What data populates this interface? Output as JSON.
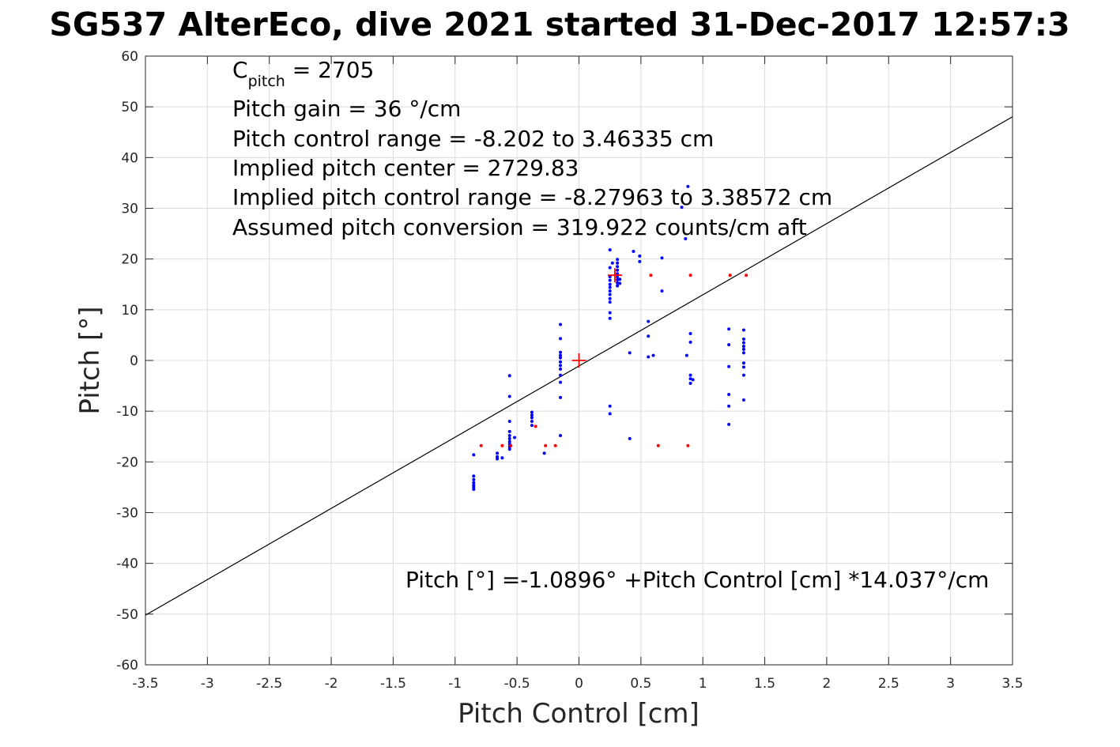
{
  "chart_data": {
    "type": "scatter",
    "title": "SG537 AlterEco, dive 2021 started 31-Dec-2017 12:57:3",
    "xlabel": "Pitch Control [cm]",
    "ylabel": "Pitch [°]",
    "xlim": [
      -3.5,
      3.5
    ],
    "ylim": [
      -60,
      60
    ],
    "xticks": [
      "-3.5",
      "-3",
      "-2.5",
      "-2",
      "-1.5",
      "-1",
      "-0.5",
      "0",
      "0.5",
      "1",
      "1.5",
      "2",
      "2.5",
      "3",
      "3.5"
    ],
    "yticks": [
      "60",
      "50",
      "40",
      "30",
      "20",
      "10",
      "0",
      "-10",
      "-20",
      "-30",
      "-40",
      "-50",
      "-60"
    ],
    "grid": true,
    "annotations": {
      "c_pitch_base": "C",
      "c_pitch_sub": "pitch",
      "c_pitch_value": " = 2705",
      "pitch_gain": "Pitch gain = 36 °/cm",
      "pitch_control_range": "Pitch control range = -8.202 to 3.46335 cm",
      "implied_center": "Implied pitch center = 2729.83",
      "implied_range": "Implied pitch control range = -8.27963 to 3.38572 cm",
      "assumed_conversion": "Assumed pitch conversion = 319.922 counts/cm aft",
      "fit_equation": "Pitch [°] =-1.0896° +Pitch Control [cm] *14.037°/cm"
    },
    "fit_line": {
      "intercept": -1.0896,
      "slope": 14.037,
      "color": "#000000"
    },
    "series": [
      {
        "color": "#0000ff",
        "points": [
          [
            -0.85,
            -18.6
          ],
          [
            -0.85,
            -22.8
          ],
          [
            -0.85,
            -23.5
          ],
          [
            -0.85,
            -24.1
          ],
          [
            -0.85,
            -24.6
          ],
          [
            -0.85,
            -25.0
          ],
          [
            -0.85,
            -25.4
          ],
          [
            -0.66,
            -18.3
          ],
          [
            -0.66,
            -19.0
          ],
          [
            -0.66,
            -19.4
          ],
          [
            -0.62,
            -19.2
          ],
          [
            -0.56,
            -3.0
          ],
          [
            -0.56,
            -7.1
          ],
          [
            -0.56,
            -12.0
          ],
          [
            -0.56,
            -14.0
          ],
          [
            -0.56,
            -14.8
          ],
          [
            -0.56,
            -15.4
          ],
          [
            -0.56,
            -16.0
          ],
          [
            -0.56,
            -16.5
          ],
          [
            -0.56,
            -17.0
          ],
          [
            -0.56,
            -17.5
          ],
          [
            -0.52,
            -15.2
          ],
          [
            -0.38,
            -10.2
          ],
          [
            -0.38,
            -10.8
          ],
          [
            -0.38,
            -11.3
          ],
          [
            -0.38,
            -12.0
          ],
          [
            -0.38,
            -12.8
          ],
          [
            -0.28,
            -18.3
          ],
          [
            -0.15,
            7.1
          ],
          [
            -0.15,
            4.3
          ],
          [
            -0.15,
            1.6
          ],
          [
            -0.15,
            1.0
          ],
          [
            -0.15,
            0.5
          ],
          [
            -0.15,
            -0.3
          ],
          [
            -0.15,
            -1.0
          ],
          [
            -0.15,
            -1.7
          ],
          [
            -0.15,
            -2.9
          ],
          [
            -0.15,
            -4.3
          ],
          [
            -0.15,
            -7.3
          ],
          [
            -0.15,
            -14.8
          ],
          [
            0.25,
            21.8
          ],
          [
            0.25,
            18.3
          ],
          [
            0.25,
            16.5
          ],
          [
            0.25,
            15.8
          ],
          [
            0.25,
            15.0
          ],
          [
            0.25,
            14.4
          ],
          [
            0.25,
            13.7
          ],
          [
            0.25,
            13.0
          ],
          [
            0.25,
            12.2
          ],
          [
            0.25,
            11.5
          ],
          [
            0.25,
            9.4
          ],
          [
            0.25,
            8.3
          ],
          [
            0.25,
            -9.0
          ],
          [
            0.25,
            -10.5
          ],
          [
            0.27,
            19.2
          ],
          [
            0.31,
            19.9
          ],
          [
            0.31,
            19.2
          ],
          [
            0.31,
            18.5
          ],
          [
            0.31,
            17.8
          ],
          [
            0.31,
            17.1
          ],
          [
            0.31,
            16.4
          ],
          [
            0.31,
            15.9
          ],
          [
            0.31,
            15.3
          ],
          [
            0.31,
            14.7
          ],
          [
            0.33,
            15.2
          ],
          [
            0.33,
            16.0
          ],
          [
            0.41,
            1.5
          ],
          [
            0.41,
            -15.4
          ],
          [
            0.44,
            21.5
          ],
          [
            0.49,
            20.6
          ],
          [
            0.49,
            19.5
          ],
          [
            0.56,
            7.7
          ],
          [
            0.56,
            4.8
          ],
          [
            0.56,
            0.7
          ],
          [
            0.6,
            1.0
          ],
          [
            0.67,
            20.2
          ],
          [
            0.67,
            13.7
          ],
          [
            0.83,
            30.2
          ],
          [
            0.86,
            24.0
          ],
          [
            0.88,
            34.3
          ],
          [
            0.87,
            1.0
          ],
          [
            0.9,
            5.3
          ],
          [
            0.9,
            3.6
          ],
          [
            0.9,
            -2.9
          ],
          [
            0.9,
            -3.6
          ],
          [
            0.9,
            -4.5
          ],
          [
            0.92,
            -3.8
          ],
          [
            1.21,
            6.2
          ],
          [
            1.21,
            3.1
          ],
          [
            1.21,
            -1.2
          ],
          [
            1.21,
            -6.7
          ],
          [
            1.21,
            -9.0
          ],
          [
            1.21,
            -12.6
          ],
          [
            1.33,
            6.0
          ],
          [
            1.33,
            4.2
          ],
          [
            1.33,
            3.5
          ],
          [
            1.33,
            2.8
          ],
          [
            1.33,
            2.2
          ],
          [
            1.33,
            1.5
          ],
          [
            1.33,
            -0.5
          ],
          [
            1.33,
            -1.3
          ],
          [
            1.33,
            -2.9
          ],
          [
            1.33,
            -7.8
          ]
        ]
      },
      {
        "color": "#ff0000",
        "points": [
          [
            -0.79,
            -16.8
          ],
          [
            -0.62,
            -16.8
          ],
          [
            -0.55,
            -16.8
          ],
          [
            -0.35,
            -13.0
          ],
          [
            -0.27,
            -16.8
          ],
          [
            -0.19,
            -16.8
          ],
          [
            0.58,
            16.8
          ],
          [
            0.64,
            -16.8
          ],
          [
            0.88,
            -16.8
          ],
          [
            0.9,
            16.8
          ],
          [
            1.22,
            16.8
          ],
          [
            1.35,
            16.8
          ]
        ]
      }
    ],
    "markers": [
      {
        "type": "plus",
        "x": 0.0,
        "y": 0.0,
        "color": "#ff0000"
      },
      {
        "type": "plus",
        "x": 0.29,
        "y": 16.8,
        "color": "#ff0000"
      }
    ]
  }
}
